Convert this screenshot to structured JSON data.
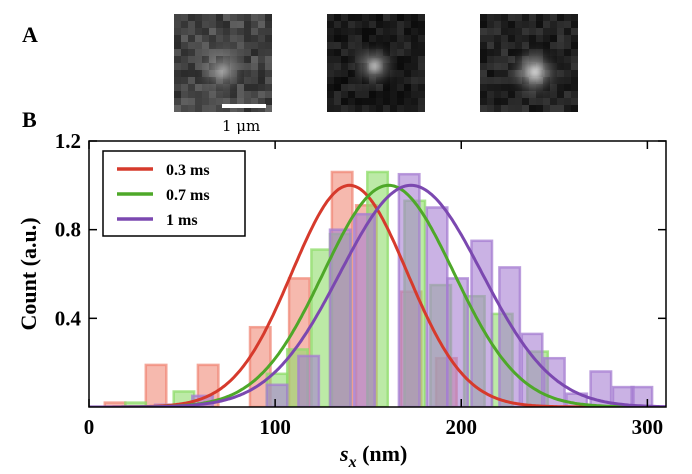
{
  "panels": {
    "a_label": "A",
    "b_label": "B"
  },
  "micrographs": {
    "count": 3,
    "scale_bar_label": "1 μm"
  },
  "colors": {
    "series_0": "#d63a2c",
    "series_1": "#4ea829",
    "series_2": "#7b48b0",
    "fill_0": "#f08a78",
    "fill_1": "#8fdc6a",
    "fill_2": "#a67ed2"
  },
  "chart_data": {
    "type": "bar",
    "title": "",
    "xlabel": "s_x (nm)",
    "xlabel_main": "s",
    "xlabel_sub": "x",
    "xlabel_unit": " (nm)",
    "ylabel": "Count (a.u.)",
    "xlim": [
      0,
      310
    ],
    "ylim": [
      0,
      1.2
    ],
    "xticks": [
      0,
      100,
      200,
      300
    ],
    "yticks": [
      0.4,
      0.8,
      1.2
    ],
    "grid": false,
    "legend_position": "top-left",
    "bin_width": 11,
    "series": [
      {
        "name": "0.3 ms",
        "bins_center": [
          14,
          36,
          64,
          92,
          113,
          136,
          149,
          173,
          192
        ],
        "bins_value": [
          0.02,
          0.19,
          0.19,
          0.36,
          0.58,
          1.06,
          0.91,
          0.52,
          0.22
        ],
        "gaussian": {
          "mean": 140,
          "sigma": 31,
          "peak": 1.0
        }
      },
      {
        "name": "0.7 ms",
        "bins_center": [
          25,
          51,
          101,
          112,
          125,
          135,
          155,
          175,
          189,
          207,
          222,
          241
        ],
        "bins_value": [
          0.02,
          0.07,
          0.15,
          0.26,
          0.71,
          0.78,
          1.06,
          0.93,
          0.55,
          0.5,
          0.42,
          0.25
        ],
        "gaussian": {
          "mean": 161,
          "sigma": 35,
          "peak": 1.0
        }
      },
      {
        "name": "1 ms",
        "bins_center": [
          41,
          61,
          101,
          118,
          135,
          148,
          172,
          187,
          198,
          211,
          226,
          238,
          250,
          262,
          275,
          287,
          297
        ],
        "bins_value": [
          0.01,
          0.05,
          0.1,
          0.23,
          0.8,
          0.87,
          1.05,
          0.9,
          0.58,
          0.75,
          0.63,
          0.33,
          0.22,
          0.06,
          0.16,
          0.09,
          0.09
        ],
        "gaussian": {
          "mean": 173,
          "sigma": 38,
          "peak": 1.0
        }
      }
    ]
  }
}
